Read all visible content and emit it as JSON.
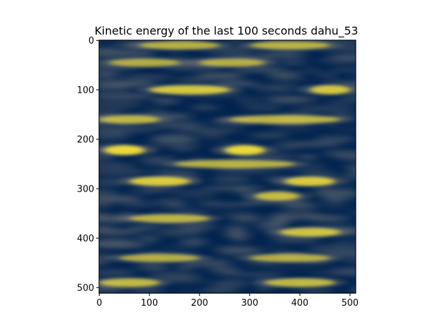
{
  "chart_data": {
    "type": "heatmap",
    "title": "Kinetic energy of the last 100 seconds dahu_53",
    "xlabel": "",
    "ylabel": "",
    "xlim": [
      0,
      511
    ],
    "ylim": [
      511,
      0
    ],
    "xticks": [
      0,
      100,
      200,
      300,
      400,
      500
    ],
    "yticks": [
      0,
      100,
      200,
      300,
      400,
      500
    ],
    "colormap": "cividis",
    "colors": {
      "low": "#00224e",
      "mid": "#7c7b78",
      "high": "#fee838"
    },
    "grid": false,
    "bright_bands": [
      {
        "y": 10,
        "x_ranges": [
          [
            80,
            240
          ],
          [
            300,
            460
          ]
        ],
        "intensity": 0.55
      },
      {
        "y": 45,
        "x_ranges": [
          [
            20,
            160
          ],
          [
            200,
            330
          ]
        ],
        "intensity": 0.5
      },
      {
        "y": 100,
        "x_ranges": [
          [
            100,
            260
          ],
          [
            420,
            500
          ]
        ],
        "intensity": 0.8
      },
      {
        "y": 160,
        "x_ranges": [
          [
            0,
            120
          ],
          [
            260,
            480
          ]
        ],
        "intensity": 0.6
      },
      {
        "y": 222,
        "x_ranges": [
          [
            10,
            90
          ],
          [
            250,
            330
          ]
        ],
        "intensity": 1.0
      },
      {
        "y": 250,
        "x_ranges": [
          [
            150,
            390
          ]
        ],
        "intensity": 0.55
      },
      {
        "y": 285,
        "x_ranges": [
          [
            60,
            180
          ],
          [
            370,
            470
          ]
        ],
        "intensity": 0.85
      },
      {
        "y": 315,
        "x_ranges": [
          [
            310,
            400
          ]
        ],
        "intensity": 0.7
      },
      {
        "y": 360,
        "x_ranges": [
          [
            60,
            220
          ]
        ],
        "intensity": 0.6
      },
      {
        "y": 388,
        "x_ranges": [
          [
            360,
            480
          ]
        ],
        "intensity": 0.75
      },
      {
        "y": 440,
        "x_ranges": [
          [
            40,
            200
          ],
          [
            300,
            460
          ]
        ],
        "intensity": 0.5
      },
      {
        "y": 490,
        "x_ranges": [
          [
            0,
            120
          ],
          [
            330,
            470
          ]
        ],
        "intensity": 0.65
      }
    ]
  }
}
